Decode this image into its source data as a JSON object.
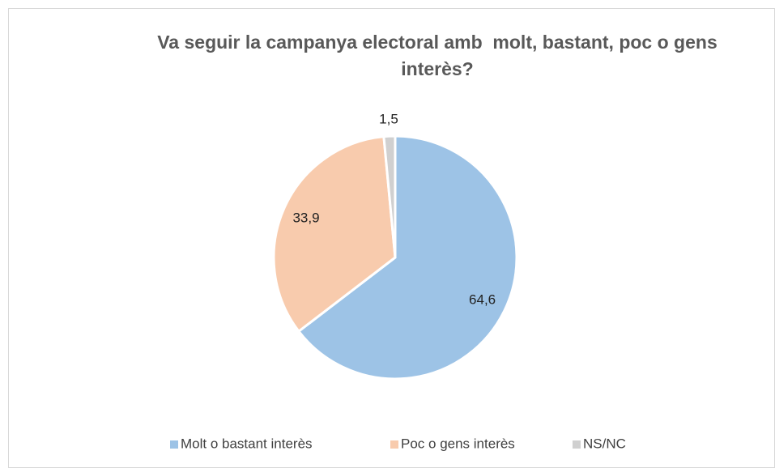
{
  "chart_data": {
    "type": "pie",
    "title": "Va seguir la campanya electoral amb  molt, bastant, poc o gens interès?",
    "categories": [
      "Molt o bastant interès",
      "Poc o gens interès",
      "NS/NC"
    ],
    "values": [
      64.6,
      33.9,
      1.5
    ],
    "value_labels": [
      "64,6",
      "33,9",
      "1,5"
    ],
    "colors": [
      "#9dc3e6",
      "#f8cbad",
      "#d0d0d0"
    ],
    "legend": "bottom"
  }
}
